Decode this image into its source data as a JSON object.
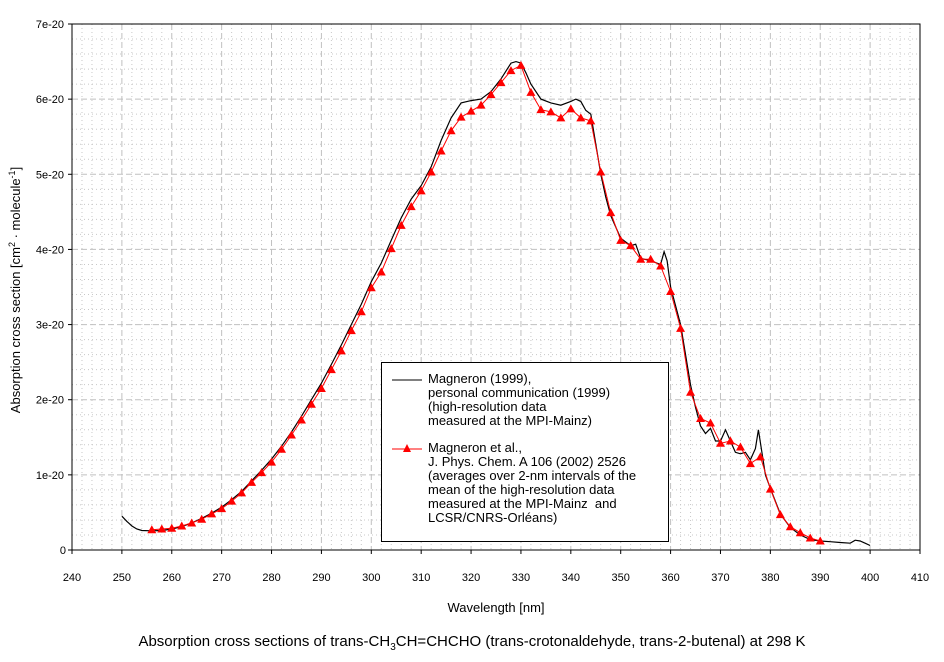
{
  "chart_data": {
    "type": "line",
    "title_parts": {
      "a": "Absorption cross sections of trans-CH",
      "b": "3",
      "c": "CH=CHCHO (trans-crotonaldehyde, trans-2-butenal) at 298 K"
    },
    "xlabel": "Wavelength [nm]",
    "ylabel_parts": {
      "a": "Absorption cross section [cm",
      "b": "2",
      "c": " · molecule",
      "d": "-1",
      "e": "]"
    },
    "xlim": [
      240,
      410
    ],
    "ylim": [
      0,
      7e-20
    ],
    "x_ticks": [
      "240",
      "250",
      "260",
      "270",
      "280",
      "290",
      "300",
      "310",
      "320",
      "330",
      "340",
      "350",
      "360",
      "370",
      "380",
      "390",
      "400",
      "410"
    ],
    "y_ticks": [
      "0",
      "1e-20",
      "2e-20",
      "3e-20",
      "4e-20",
      "5e-20",
      "6e-20",
      "7e-20"
    ],
    "grid": true,
    "legend_placement": "bottom-center",
    "y_unit_factor": 1e-20,
    "series": [
      {
        "name_lines": [
          "Magneron (1999),",
          "personal communication (1999)",
          "(high-resolution data",
          "measured at the MPI-Mainz)"
        ],
        "color": "#000000",
        "marker": "none",
        "x": [
          250,
          251,
          252,
          253,
          254,
          256,
          258,
          260,
          262,
          264,
          266,
          268,
          270,
          272,
          274,
          276,
          278,
          280,
          282,
          284,
          286,
          288,
          290,
          292,
          294,
          296,
          298,
          300,
          302,
          304,
          306,
          308,
          310,
          312,
          314,
          316,
          318,
          320,
          322,
          324,
          326,
          328,
          329,
          330,
          331,
          332,
          334,
          336,
          338,
          340,
          341,
          342,
          343,
          344,
          345,
          346,
          347,
          348,
          350,
          352,
          353,
          354,
          356,
          358,
          358.7,
          359.3,
          360,
          362,
          364,
          365,
          366,
          367,
          368,
          369,
          370,
          371,
          372,
          373,
          374,
          375,
          376,
          377,
          377.6,
          378.3,
          379,
          380,
          382,
          384,
          386,
          388,
          390,
          392,
          394,
          396,
          397,
          398,
          399,
          400
        ],
        "y": [
          0.45,
          0.38,
          0.32,
          0.28,
          0.26,
          0.255,
          0.26,
          0.28,
          0.31,
          0.36,
          0.42,
          0.49,
          0.57,
          0.67,
          0.78,
          0.92,
          1.06,
          1.21,
          1.38,
          1.57,
          1.78,
          2.0,
          2.22,
          2.47,
          2.73,
          3.0,
          3.27,
          3.57,
          3.82,
          4.12,
          4.42,
          4.67,
          4.85,
          5.1,
          5.45,
          5.75,
          5.95,
          5.98,
          6.0,
          6.1,
          6.27,
          6.48,
          6.5,
          6.48,
          6.35,
          6.2,
          6.0,
          5.95,
          5.92,
          5.97,
          6.0,
          5.97,
          5.85,
          5.8,
          5.4,
          5.0,
          4.7,
          4.45,
          4.15,
          4.05,
          4.07,
          3.88,
          3.85,
          3.8,
          3.97,
          3.85,
          3.5,
          3.0,
          2.2,
          1.9,
          1.65,
          1.55,
          1.62,
          1.45,
          1.45,
          1.6,
          1.45,
          1.3,
          1.28,
          1.3,
          1.2,
          1.35,
          1.6,
          1.3,
          1.0,
          0.82,
          0.48,
          0.3,
          0.2,
          0.14,
          0.12,
          0.11,
          0.1,
          0.09,
          0.13,
          0.12,
          0.09,
          0.06
        ]
      },
      {
        "name_lines": [
          "Magneron et al.,",
          "J. Phys. Chem. A 106 (2002) 2526",
          "(averages over 2-nm intervals of the",
          "mean of the high-resolution data",
          "measured at the MPI-Mainz  and",
          "LCSR/CNRS-Orléans)"
        ],
        "color": "#ff0000",
        "marker": "triangle",
        "x": [
          256,
          258,
          260,
          262,
          264,
          266,
          268,
          270,
          272,
          274,
          276,
          278,
          280,
          282,
          284,
          286,
          288,
          290,
          292,
          294,
          296,
          298,
          300,
          302,
          304,
          306,
          308,
          310,
          312,
          314,
          316,
          318,
          320,
          322,
          324,
          326,
          328,
          330,
          332,
          334,
          336,
          338,
          340,
          342,
          344,
          346,
          348,
          350,
          352,
          354,
          356,
          358,
          360,
          362,
          364,
          366,
          368,
          370,
          372,
          374,
          376,
          378,
          380,
          382,
          384,
          386,
          388,
          390
        ],
        "y": [
          0.27,
          0.28,
          0.29,
          0.32,
          0.36,
          0.41,
          0.48,
          0.55,
          0.65,
          0.76,
          0.9,
          1.03,
          1.17,
          1.34,
          1.53,
          1.73,
          1.94,
          2.15,
          2.4,
          2.65,
          2.92,
          3.17,
          3.49,
          3.7,
          4.01,
          4.32,
          4.57,
          4.78,
          5.03,
          5.31,
          5.58,
          5.76,
          5.84,
          5.92,
          6.06,
          6.22,
          6.38,
          6.45,
          6.09,
          5.86,
          5.83,
          5.75,
          5.87,
          5.75,
          5.71,
          5.03,
          4.49,
          4.12,
          4.05,
          3.87,
          3.87,
          3.78,
          3.44,
          2.95,
          2.1,
          1.75,
          1.69,
          1.42,
          1.45,
          1.37,
          1.15,
          1.24,
          0.81,
          0.47,
          0.31,
          0.23,
          0.16,
          0.12
        ]
      }
    ]
  }
}
